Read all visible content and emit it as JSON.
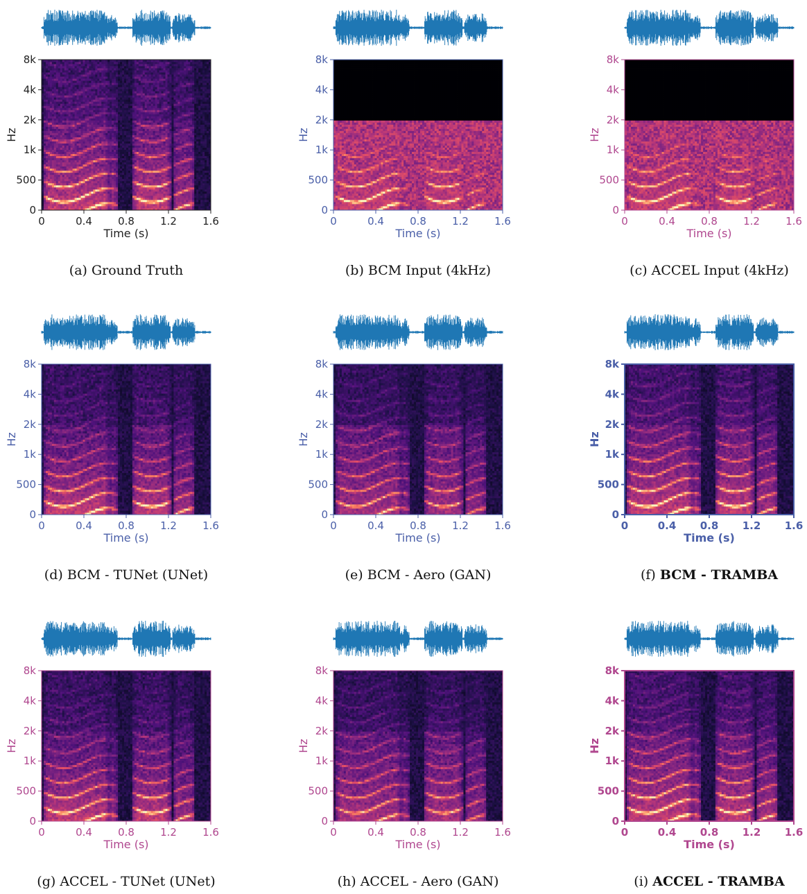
{
  "colors": {
    "waveform": "#1f77b4",
    "bcm_axis": "#4a5fa8",
    "accel_axis": "#b0478f",
    "neutral_axis": "#222222"
  },
  "chart_data": [
    {
      "type": "heatmap",
      "caption": "(a) Ground Truth",
      "caption_bold": "",
      "axis_color": "neutral",
      "bold_axes": false,
      "variant": "gt",
      "band_limited": false,
      "xlabel": "Time (s)",
      "ylabel": "Hz",
      "x_ticks": [
        "0",
        "0.4",
        "0.8",
        "1.2",
        "1.6"
      ],
      "y_ticks": [
        "0",
        "500",
        "1k",
        "2k",
        "4k",
        "8k"
      ],
      "xlim": [
        0,
        1.6
      ]
    },
    {
      "type": "heatmap",
      "caption": "(b) BCM Input (4kHz)",
      "caption_bold": "",
      "axis_color": "bcm",
      "bold_axes": false,
      "variant": "input",
      "band_limited": true,
      "band_limit_tick": "2k",
      "xlabel": "Time (s)",
      "ylabel": "Hz",
      "x_ticks": [
        "0",
        "0.4",
        "0.8",
        "1.2",
        "1.6"
      ],
      "y_ticks": [
        "0",
        "500",
        "1k",
        "2k",
        "4k",
        "8k"
      ],
      "xlim": [
        0,
        1.6
      ]
    },
    {
      "type": "heatmap",
      "caption": "(c) ACCEL Input (4kHz)",
      "caption_bold": "",
      "axis_color": "accel",
      "bold_axes": false,
      "variant": "input",
      "band_limited": true,
      "band_limit_tick": "2k",
      "xlabel": "Time (s)",
      "ylabel": "Hz",
      "x_ticks": [
        "0",
        "0.4",
        "0.8",
        "1.2",
        "1.6"
      ],
      "y_ticks": [
        "0",
        "500",
        "1k",
        "2k",
        "4k",
        "8k"
      ],
      "xlim": [
        0,
        1.6
      ]
    },
    {
      "type": "heatmap",
      "caption": "(d) BCM - TUNet (UNet)",
      "caption_bold": "",
      "axis_color": "bcm",
      "bold_axes": false,
      "variant": "unet",
      "band_limited": false,
      "xlabel": "Time (s)",
      "ylabel": "Hz",
      "x_ticks": [
        "0",
        "0.4",
        "0.8",
        "1.2",
        "1.6"
      ],
      "y_ticks": [
        "0",
        "500",
        "1k",
        "2k",
        "4k",
        "8k"
      ],
      "xlim": [
        0,
        1.6
      ]
    },
    {
      "type": "heatmap",
      "caption": "(e) BCM - Aero (GAN)",
      "caption_bold": "",
      "axis_color": "bcm",
      "bold_axes": false,
      "variant": "gan",
      "band_limited": false,
      "xlabel": "Time (s)",
      "ylabel": "Hz",
      "x_ticks": [
        "0",
        "0.4",
        "0.8",
        "1.2",
        "1.6"
      ],
      "y_ticks": [
        "0",
        "500",
        "1k",
        "2k",
        "4k",
        "8k"
      ],
      "xlim": [
        0,
        1.6
      ]
    },
    {
      "type": "heatmap",
      "caption": "(f) ",
      "caption_bold": "BCM - TRAMBA",
      "axis_color": "bcm",
      "bold_axes": true,
      "variant": "tramba",
      "band_limited": false,
      "xlabel": "Time (s)",
      "ylabel": "Hz",
      "x_ticks": [
        "0",
        "0.4",
        "0.8",
        "1.2",
        "1.6"
      ],
      "y_ticks": [
        "0",
        "500",
        "1k",
        "2k",
        "4k",
        "8k"
      ],
      "xlim": [
        0,
        1.6
      ]
    },
    {
      "type": "heatmap",
      "caption": "(g) ACCEL - TUNet (UNet)",
      "caption_bold": "",
      "axis_color": "accel",
      "bold_axes": false,
      "variant": "unet",
      "band_limited": false,
      "xlabel": "Time (s)",
      "ylabel": "Hz",
      "x_ticks": [
        "0",
        "0.4",
        "0.8",
        "1.2",
        "1.6"
      ],
      "y_ticks": [
        "0",
        "500",
        "1k",
        "2k",
        "4k",
        "8k"
      ],
      "xlim": [
        0,
        1.6
      ]
    },
    {
      "type": "heatmap",
      "caption": "(h) ACCEL - Aero (GAN)",
      "caption_bold": "",
      "axis_color": "accel",
      "bold_axes": false,
      "variant": "gan",
      "band_limited": false,
      "xlabel": "Time (s)",
      "ylabel": "Hz",
      "x_ticks": [
        "0",
        "0.4",
        "0.8",
        "1.2",
        "1.6"
      ],
      "y_ticks": [
        "0",
        "500",
        "1k",
        "2k",
        "4k",
        "8k"
      ],
      "xlim": [
        0,
        1.6
      ]
    },
    {
      "type": "heatmap",
      "caption": "(i) ",
      "caption_bold": "ACCEL - TRAMBA",
      "axis_color": "accel",
      "bold_axes": true,
      "variant": "tramba",
      "band_limited": false,
      "xlabel": "Time (s)",
      "ylabel": "Hz",
      "x_ticks": [
        "0",
        "0.4",
        "0.8",
        "1.2",
        "1.6"
      ],
      "y_ticks": [
        "0",
        "500",
        "1k",
        "2k",
        "4k",
        "8k"
      ],
      "xlim": [
        0,
        1.6
      ]
    }
  ]
}
